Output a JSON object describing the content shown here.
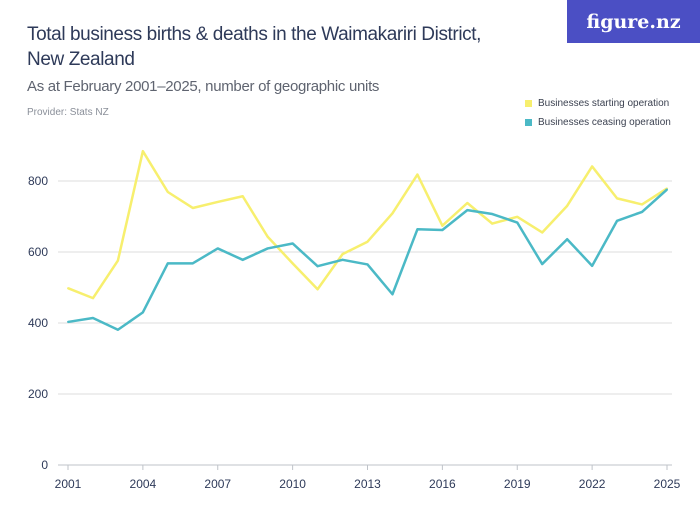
{
  "header": {
    "title": "Total business births & deaths in the Waimakariri District, New Zealand",
    "subtitle": "As at February 2001–2025, number of geographic units",
    "provider": "Provider: Stats NZ",
    "logo": "figure.nz",
    "logo_color": "#4b4fc4"
  },
  "chart_data": {
    "type": "line",
    "title": "Total business births & deaths in the Waimakariri District, New Zealand",
    "subtitle": "As at February 2001–2025, number of geographic units",
    "x": [
      2001,
      2002,
      2003,
      2004,
      2005,
      2006,
      2007,
      2008,
      2009,
      2010,
      2011,
      2012,
      2013,
      2014,
      2015,
      2016,
      2017,
      2018,
      2019,
      2020,
      2021,
      2022,
      2023,
      2024,
      2025
    ],
    "x_ticks": [
      "2001",
      "2004",
      "2007",
      "2010",
      "2013",
      "2016",
      "2019",
      "2022",
      "2025"
    ],
    "y_ticks": [
      "0",
      "200",
      "400",
      "600",
      "800"
    ],
    "ylim": [
      0,
      880
    ],
    "grid": true,
    "legend_position": "top-right",
    "series": [
      {
        "name": "Businesses starting operation",
        "color": "#f7ef6e",
        "values": [
          498,
          470,
          576,
          884,
          769,
          724,
          741,
          757,
          643,
          568,
          495,
          594,
          629,
          709,
          818,
          674,
          738,
          680,
          699,
          655,
          730,
          841,
          751,
          734,
          779
        ]
      },
      {
        "name": "Businesses ceasing operation",
        "color": "#4bb9c6",
        "values": [
          403,
          414,
          381,
          430,
          568,
          568,
          610,
          578,
          610,
          624,
          560,
          578,
          565,
          481,
          664,
          662,
          718,
          707,
          683,
          566,
          636,
          561,
          688,
          713,
          776
        ]
      }
    ]
  }
}
